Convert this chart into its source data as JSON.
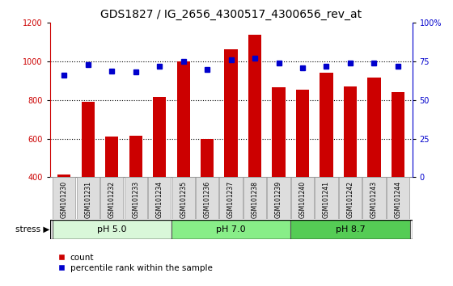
{
  "title": "GDS1827 / IG_2656_4300517_4300656_rev_at",
  "samples": [
    "GSM101230",
    "GSM101231",
    "GSM101232",
    "GSM101233",
    "GSM101234",
    "GSM101235",
    "GSM101236",
    "GSM101237",
    "GSM101238",
    "GSM101239",
    "GSM101240",
    "GSM101241",
    "GSM101242",
    "GSM101243",
    "GSM101244"
  ],
  "counts": [
    415,
    790,
    610,
    615,
    815,
    1000,
    600,
    1065,
    1140,
    868,
    853,
    940,
    872,
    915,
    843
  ],
  "percentiles": [
    66,
    73,
    69,
    68,
    72,
    75,
    70,
    76,
    77,
    74,
    71,
    72,
    74,
    74,
    72
  ],
  "ylim_left": [
    400,
    1200
  ],
  "ylim_right": [
    0,
    100
  ],
  "yticks_left": [
    400,
    600,
    800,
    1000,
    1200
  ],
  "yticks_right": [
    0,
    25,
    50,
    75,
    100
  ],
  "ytick_labels_right": [
    "0",
    "25",
    "50",
    "75",
    "100%"
  ],
  "groups": [
    {
      "label": "pH 5.0",
      "start": 0,
      "end": 5,
      "color": "#d9f7d9"
    },
    {
      "label": "pH 7.0",
      "start": 5,
      "end": 10,
      "color": "#88ee88"
    },
    {
      "label": "pH 8.7",
      "start": 10,
      "end": 15,
      "color": "#55cc55"
    }
  ],
  "bar_color": "#cc0000",
  "dot_color": "#0000cc",
  "bar_width": 0.55,
  "grid_color": "black",
  "stress_label": "stress",
  "legend_count_label": "count",
  "legend_pct_label": "percentile rank within the sample",
  "bg_color": "#ffffff",
  "xtick_bg": "#dddddd",
  "title_fontsize": 10,
  "tick_fontsize": 7,
  "axis_label_color_left": "#cc0000",
  "axis_label_color_right": "#0000cc"
}
